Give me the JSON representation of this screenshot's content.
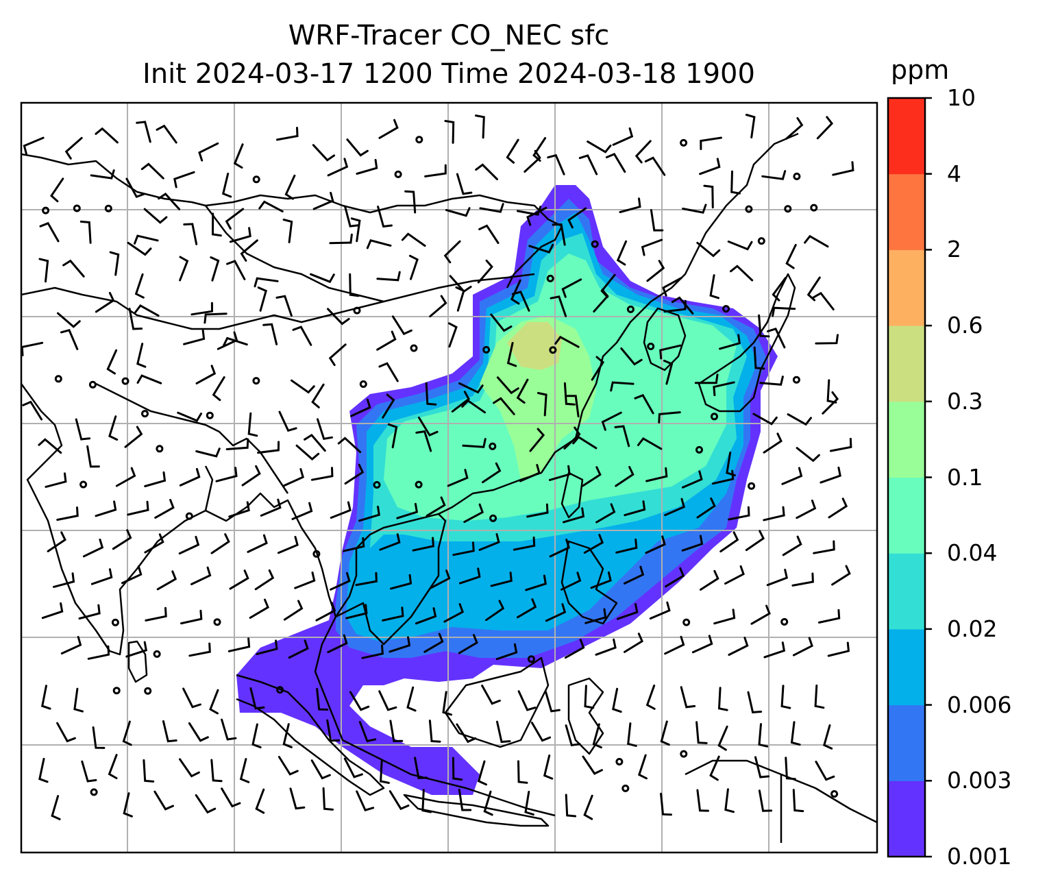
{
  "title": {
    "line1": "WRF-Tracer CO_NEC sfc",
    "line2": "Init 2024-03-17 1200 Time 2024-03-18 1900"
  },
  "chart_data": {
    "type": "heatmap",
    "title": "WRF-Tracer CO_NEC sfc",
    "subtitle": "Init 2024-03-17 1200 Time 2024-03-18 1900",
    "variable": "CO_NEC",
    "level": "sfc",
    "grid": true,
    "wind_barbs": true,
    "colorbar": {
      "label": "ppm",
      "placement": "right",
      "ticks": [
        "0.001",
        "0.003",
        "0.006",
        "0.02",
        "0.04",
        "0.1",
        "0.3",
        "0.6",
        "2",
        "4",
        "10"
      ],
      "levels": [
        0.001,
        0.003,
        0.006,
        0.02,
        0.04,
        0.1,
        0.3,
        0.6,
        2,
        4,
        10
      ],
      "colors": [
        "#6432fe",
        "#3376f4",
        "#04b0ea",
        "#33dfd4",
        "#68fdbd",
        "#99fe98",
        "#cbdf81",
        "#feb061",
        "#fe7540",
        "#fe2e1d"
      ]
    },
    "map_colors": {
      "land_line": "#000000",
      "gridline": "#b0b0b0"
    }
  }
}
